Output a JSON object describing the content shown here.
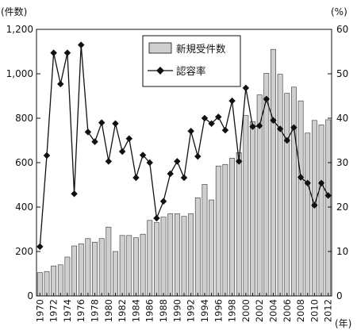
{
  "chart_data": {
    "type": "bar+line",
    "left_unit": "(件数)",
    "right_unit": "(%)",
    "x_unit": "(年)",
    "legend": {
      "position": "top-center",
      "bar_label": "新規受件数",
      "line_label": "認容率"
    },
    "x": [
      1970,
      1971,
      1972,
      1973,
      1974,
      1975,
      1976,
      1977,
      1978,
      1979,
      1980,
      1981,
      1982,
      1983,
      1984,
      1985,
      1986,
      1987,
      1988,
      1989,
      1990,
      1991,
      1992,
      1993,
      1994,
      1995,
      1996,
      1997,
      1998,
      1999,
      2000,
      2001,
      2002,
      2003,
      2004,
      2005,
      2006,
      2007,
      2008,
      2009,
      2010,
      2011,
      2012
    ],
    "x_tick_labels": [
      "1970",
      "1972",
      "1974",
      "1976",
      "1978",
      "1980",
      "1982",
      "1984",
      "1986",
      "1988",
      "1990",
      "1992",
      "1994",
      "1996",
      "1998",
      "2000",
      "2002",
      "2004",
      "2006",
      "2008",
      "2010",
      "2012"
    ],
    "left_axis": {
      "min": 0,
      "max": 1200,
      "ticks": [
        "0",
        "200",
        "400",
        "600",
        "800",
        "1,000",
        "1,200"
      ]
    },
    "right_axis": {
      "min": 0,
      "max": 60,
      "ticks": [
        "0",
        "10",
        "20",
        "30",
        "40",
        "50",
        "60"
      ]
    },
    "series": [
      {
        "name": "新規受件数",
        "kind": "bar",
        "axis": "left",
        "color": "#cfcfcf",
        "values": [
          105,
          110,
          135,
          140,
          175,
          225,
          235,
          258,
          242,
          258,
          310,
          200,
          272,
          272,
          262,
          278,
          340,
          330,
          355,
          370,
          370,
          358,
          370,
          442,
          502,
          432,
          585,
          592,
          620,
          645,
          812,
          785,
          905,
          1002,
          1110,
          998,
          912,
          940,
          878,
          733,
          790,
          770,
          793
        ]
      },
      {
        "name": "認容率",
        "kind": "line",
        "axis": "right",
        "color": "#111111",
        "values": [
          11.1,
          31.6,
          54.7,
          47.7,
          54.7,
          23.0,
          56.5,
          36.9,
          34.7,
          39.0,
          30.3,
          38.8,
          32.5,
          35.4,
          26.6,
          31.7,
          30.0,
          17.5,
          21.3,
          27.5,
          30.3,
          26.6,
          37.1,
          31.4,
          40.0,
          38.8,
          40.3,
          37.3,
          43.9,
          30.3,
          46.8,
          38.1,
          38.3,
          44.3,
          39.5,
          37.6,
          35.0,
          37.9,
          26.7,
          25.4,
          20.4,
          25.4,
          22.6
        ]
      }
    ]
  }
}
